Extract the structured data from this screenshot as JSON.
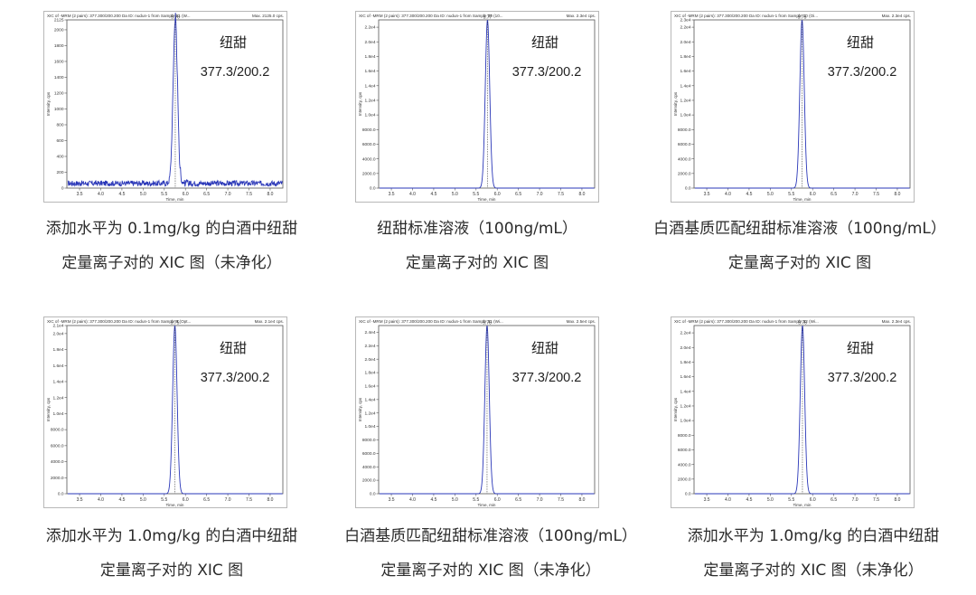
{
  "panels": [
    {
      "header": "XIC of -MRM (2 pairs): 377.300/200.200 Da ID: nudun-1 from Sample 21 (W...",
      "max_label": "Max. 2125.0 cps.",
      "peak_label": "5.76",
      "name": "纽甜",
      "transition": "377.3/200.2",
      "ylabel": "Intensity, cps",
      "xlabel": "Time, min",
      "caption": [
        "添加水平为 0.1mg/kg 的白酒中纽甜",
        "定量离子对的 XIC 图（未净化）"
      ],
      "chart_data": {
        "type": "line",
        "peak_x": 5.76,
        "peak_y": 2125,
        "baseline": 60,
        "noise": true,
        "xlim": [
          3.2,
          8.3
        ],
        "ylim": [
          0,
          2125
        ],
        "xticks": [
          "3.5",
          "4.0",
          "4.5",
          "5.0",
          "5.5",
          "6.0",
          "6.5",
          "7.0",
          "7.5",
          "8.0"
        ],
        "yticks": [
          {
            "v": 0,
            "l": "0"
          },
          {
            "v": 200,
            "l": "200"
          },
          {
            "v": 400,
            "l": "400"
          },
          {
            "v": 600,
            "l": "600"
          },
          {
            "v": 800,
            "l": "800"
          },
          {
            "v": 1000,
            "l": "1000"
          },
          {
            "v": 1200,
            "l": "1200"
          },
          {
            "v": 1400,
            "l": "1400"
          },
          {
            "v": 1600,
            "l": "1600"
          },
          {
            "v": 1800,
            "l": "1800"
          },
          {
            "v": 2000,
            "l": "2000"
          },
          {
            "v": 2125,
            "l": "2125"
          }
        ]
      }
    },
    {
      "header": "XIC of -MRM (2 pairs): 377.300/200.200 Da ID: nudun-1 from Sample 30 (10...",
      "max_label": "Max. 2.3e4 cps.",
      "peak_label": "5.77",
      "name": "纽甜",
      "transition": "377.3/200.2",
      "ylabel": "Intensity, cps",
      "xlabel": "Time, min",
      "caption": [
        "纽甜标准溶液（100ng/mL）",
        "定量离子对的 XIC 图"
      ],
      "chart_data": {
        "type": "line",
        "peak_x": 5.77,
        "peak_y": 23000,
        "baseline": 0,
        "noise": false,
        "xlim": [
          3.2,
          8.3
        ],
        "ylim": [
          0,
          23000
        ],
        "xticks": [
          "3.5",
          "4.0",
          "4.5",
          "5.0",
          "5.5",
          "6.0",
          "6.5",
          "7.0",
          "7.5",
          "8.0"
        ],
        "yticks": [
          {
            "v": 0,
            "l": "0.0"
          },
          {
            "v": 2000,
            "l": "2000.0"
          },
          {
            "v": 4000,
            "l": "4000.0"
          },
          {
            "v": 6000,
            "l": "6000.0"
          },
          {
            "v": 8000,
            "l": "8000.0"
          },
          {
            "v": 10000,
            "l": "1.0e4"
          },
          {
            "v": 12000,
            "l": "1.2e4"
          },
          {
            "v": 14000,
            "l": "1.4e4"
          },
          {
            "v": 16000,
            "l": "1.6e4"
          },
          {
            "v": 18000,
            "l": "1.8e4"
          },
          {
            "v": 20000,
            "l": "2.0e4"
          },
          {
            "v": 22000,
            "l": "2.2e4"
          }
        ]
      }
    },
    {
      "header": "XIC of -MRM (2 pairs): 377.300/200.200 Da ID: nudun-1 from Sample 10 (Oi...",
      "max_label": "Max. 2.3e4 cps.",
      "peak_label": "5.75",
      "name": "纽甜",
      "transition": "377.3/200.2",
      "ylabel": "Intensity, cps",
      "xlabel": "Time, min",
      "caption": [
        "白酒基质匹配纽甜标准溶液（100ng/mL）",
        "定量离子对的 XIC 图"
      ],
      "chart_data": {
        "type": "line",
        "peak_x": 5.75,
        "peak_y": 23000,
        "baseline": 0,
        "noise": false,
        "xlim": [
          3.2,
          8.3
        ],
        "ylim": [
          0,
          23000
        ],
        "xticks": [
          "3.5",
          "4.0",
          "4.5",
          "5.0",
          "5.5",
          "6.0",
          "6.5",
          "7.0",
          "7.5",
          "8.0"
        ],
        "yticks": [
          {
            "v": 0,
            "l": "0.0"
          },
          {
            "v": 2000,
            "l": "2000.0"
          },
          {
            "v": 4000,
            "l": "4000.0"
          },
          {
            "v": 6000,
            "l": "6000.0"
          },
          {
            "v": 8000,
            "l": "8000.0"
          },
          {
            "v": 10000,
            "l": "1.0e4"
          },
          {
            "v": 12000,
            "l": "1.2e4"
          },
          {
            "v": 14000,
            "l": "1.4e4"
          },
          {
            "v": 16000,
            "l": "1.6e4"
          },
          {
            "v": 18000,
            "l": "1.8e4"
          },
          {
            "v": 20000,
            "l": "2.0e4"
          },
          {
            "v": 22000,
            "l": "2.2e4"
          },
          {
            "v": 23000,
            "l": "2.3e4"
          }
        ]
      }
    },
    {
      "header": "XIC of -MRM (2 pairs): 377.300/200.200 Da ID: nudun-1 from Sample 9 (Opt...",
      "max_label": "Max. 2.1e4 cps.",
      "peak_label": "5.75",
      "name": "纽甜",
      "transition": "377.3/200.2",
      "ylabel": "Intensity, cps",
      "xlabel": "Time, min",
      "caption": [
        "添加水平为 1.0mg/kg 的白酒中纽甜",
        "定量离子对的 XIC 图"
      ],
      "chart_data": {
        "type": "line",
        "peak_x": 5.75,
        "peak_y": 21000,
        "baseline": 0,
        "noise": false,
        "xlim": [
          3.2,
          8.3
        ],
        "ylim": [
          0,
          21000
        ],
        "xticks": [
          "3.5",
          "4.0",
          "4.5",
          "5.0",
          "5.5",
          "6.0",
          "6.5",
          "7.0",
          "7.5",
          "8.0"
        ],
        "yticks": [
          {
            "v": 0,
            "l": "0.0"
          },
          {
            "v": 2000,
            "l": "2000.0"
          },
          {
            "v": 4000,
            "l": "4000.0"
          },
          {
            "v": 6000,
            "l": "6000.0"
          },
          {
            "v": 8000,
            "l": "8000.0"
          },
          {
            "v": 10000,
            "l": "1.0e4"
          },
          {
            "v": 12000,
            "l": "1.2e4"
          },
          {
            "v": 14000,
            "l": "1.4e4"
          },
          {
            "v": 16000,
            "l": "1.6e4"
          },
          {
            "v": 18000,
            "l": "1.8e4"
          },
          {
            "v": 20000,
            "l": "2.0e4"
          },
          {
            "v": 21000,
            "l": "2.1e4"
          }
        ]
      }
    },
    {
      "header": "XIC of -MRM (2 pairs): 377.300/200.200 Da ID: nudun-1 from Sample 31 (Wi...",
      "max_label": "Max. 2.5e4 cps.",
      "peak_label": "5.76",
      "name": "纽甜",
      "transition": "377.3/200.2",
      "ylabel": "Intensity, cps",
      "xlabel": "Time, min",
      "caption": [
        "白酒基质匹配纽甜标准溶液（100ng/mL）",
        "定量离子对的 XIC 图（未净化）"
      ],
      "chart_data": {
        "type": "line",
        "peak_x": 5.76,
        "peak_y": 25000,
        "baseline": 0,
        "noise": false,
        "xlim": [
          3.2,
          8.3
        ],
        "ylim": [
          0,
          25000
        ],
        "xticks": [
          "3.5",
          "4.0",
          "4.5",
          "5.0",
          "5.5",
          "6.0",
          "6.5",
          "7.0",
          "7.5",
          "8.0"
        ],
        "yticks": [
          {
            "v": 0,
            "l": "0.0"
          },
          {
            "v": 2000,
            "l": "2000.0"
          },
          {
            "v": 4000,
            "l": "4000.0"
          },
          {
            "v": 6000,
            "l": "6000.0"
          },
          {
            "v": 8000,
            "l": "8000.0"
          },
          {
            "v": 10000,
            "l": "1.0e4"
          },
          {
            "v": 12000,
            "l": "1.2e4"
          },
          {
            "v": 14000,
            "l": "1.4e4"
          },
          {
            "v": 16000,
            "l": "1.6e4"
          },
          {
            "v": 18000,
            "l": "1.8e4"
          },
          {
            "v": 20000,
            "l": "2.0e4"
          },
          {
            "v": 22000,
            "l": "2.2e4"
          },
          {
            "v": 24000,
            "l": "2.4e4"
          }
        ]
      }
    },
    {
      "header": "XIC of -MRM (2 pairs): 377.300/200.200 Da ID: nudun-1 from Sample 32 (Wi...",
      "max_label": "Max. 2.3e4 cps.",
      "peak_label": "5.76",
      "name": "纽甜",
      "transition": "377.3/200.2",
      "ylabel": "Intensity, cps",
      "xlabel": "Time, min",
      "caption": [
        "添加水平为 1.0mg/kg 的白酒中纽甜",
        "定量离子对的 XIC 图（未净化）"
      ],
      "chart_data": {
        "type": "line",
        "peak_x": 5.76,
        "peak_y": 23000,
        "baseline": 0,
        "noise": false,
        "xlim": [
          3.2,
          8.3
        ],
        "ylim": [
          0,
          23000
        ],
        "xticks": [
          "3.5",
          "4.0",
          "4.5",
          "5.0",
          "5.5",
          "6.0",
          "6.5",
          "7.0",
          "7.5",
          "8.0"
        ],
        "yticks": [
          {
            "v": 0,
            "l": "0.0"
          },
          {
            "v": 2000,
            "l": "2000.0"
          },
          {
            "v": 4000,
            "l": "4000.0"
          },
          {
            "v": 6000,
            "l": "6000.0"
          },
          {
            "v": 8000,
            "l": "8000.0"
          },
          {
            "v": 10000,
            "l": "1.0e4"
          },
          {
            "v": 12000,
            "l": "1.2e4"
          },
          {
            "v": 14000,
            "l": "1.4e4"
          },
          {
            "v": 16000,
            "l": "1.6e4"
          },
          {
            "v": 18000,
            "l": "1.8e4"
          },
          {
            "v": 20000,
            "l": "2.0e4"
          },
          {
            "v": 22000,
            "l": "2.2e4"
          }
        ]
      }
    }
  ]
}
